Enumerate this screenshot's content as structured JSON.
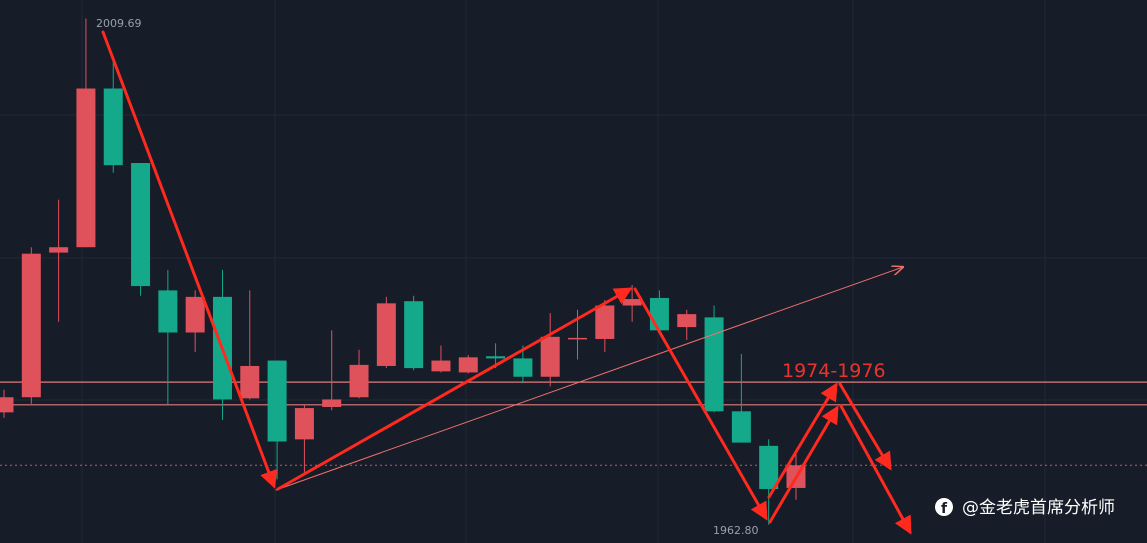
{
  "chart_data": {
    "type": "candlestick",
    "open": [
      1973.2,
      1974.6,
      1988.0,
      1988.5,
      2003.2,
      1996.3,
      1984.5,
      1980.6,
      1983.9,
      1974.5,
      1978.0,
      1970.7,
      1973.7,
      1974.6,
      1977.5,
      1983.5,
      1977.0,
      1976.9,
      1978.4,
      1978.2,
      1976.5,
      1980.0,
      1980.0,
      1983.1,
      1983.8,
      1981.1,
      1982.0,
      1973.3,
      1970.1,
      1966.2
    ],
    "high": [
      1975.3,
      1988.5,
      1992.9,
      2009.69,
      2006.0,
      1996.3,
      1986.4,
      1984.5,
      1986.4,
      1984.5,
      1978.0,
      1973.9,
      1980.8,
      1979.0,
      1983.9,
      1984.0,
      1979.4,
      1978.5,
      1979.6,
      1979.4,
      1982.4,
      1982.7,
      1983.6,
      1985.0,
      1984.5,
      1982.7,
      1983.1,
      1978.6,
      1970.7,
      1969.3
    ],
    "low": [
      1972.7,
      1974.0,
      1981.6,
      1988.5,
      1995.4,
      1984.0,
      1973.9,
      1978.8,
      1972.5,
      1974.4,
      1967.0,
      1967.4,
      1973.4,
      1974.5,
      1977.3,
      1977.1,
      1976.9,
      1976.8,
      1977.3,
      1975.9,
      1975.6,
      1978.1,
      1978.8,
      1981.6,
      1980.6,
      1979.9,
      1973.2,
      1970.4,
      1962.8,
      1965.1
    ],
    "close": [
      1974.6,
      1987.9,
      1988.5,
      2003.2,
      1996.1,
      1984.9,
      1980.6,
      1983.9,
      1974.4,
      1977.5,
      1970.5,
      1973.6,
      1974.4,
      1977.6,
      1983.3,
      1977.3,
      1978.0,
      1978.3,
      1978.2,
      1976.5,
      1980.2,
      1980.1,
      1983.1,
      1983.7,
      1980.8,
      1982.3,
      1973.3,
      1970.4,
      1966.1,
      1968.3
    ],
    "up_color": "#e0525b",
    "down_color": "#14a98b",
    "ylim": [
      1961.1,
      2011.4
    ],
    "levels": [
      1976.0,
      1973.9
    ],
    "level_color": "#e07c7c",
    "price_line": 1968.3,
    "annotations": {
      "high_label": "2009.69",
      "low_label": "1962.80",
      "zone_label": "1974-1976"
    }
  },
  "watermark": "@金老虎首席分析师"
}
